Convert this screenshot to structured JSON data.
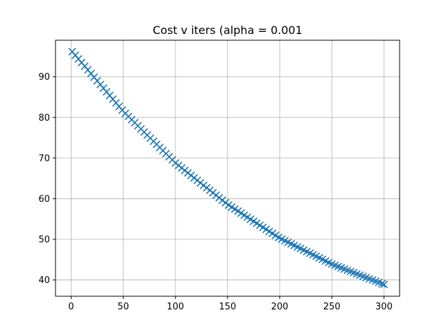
{
  "chart_data": {
    "type": "scatter",
    "title": "Cost v iters (alpha = 0.001",
    "xlabel": "",
    "ylabel": "",
    "xlim": [
      -15,
      315
    ],
    "ylim": [
      36,
      99
    ],
    "xticks": [
      0,
      50,
      100,
      150,
      200,
      250,
      300
    ],
    "yticks": [
      40,
      50,
      60,
      70,
      80,
      90
    ],
    "grid": true,
    "marker": "x",
    "color": "#1f77b4",
    "series": [
      {
        "x_start": 1,
        "x_end": 300,
        "x_step": 3,
        "sampled_points": [
          [
            1,
            96.2
          ],
          [
            50,
            81.5
          ],
          [
            100,
            68.8
          ],
          [
            150,
            58.6
          ],
          [
            200,
            50.3
          ],
          [
            250,
            43.9
          ],
          [
            300,
            38.9
          ]
        ]
      }
    ]
  }
}
